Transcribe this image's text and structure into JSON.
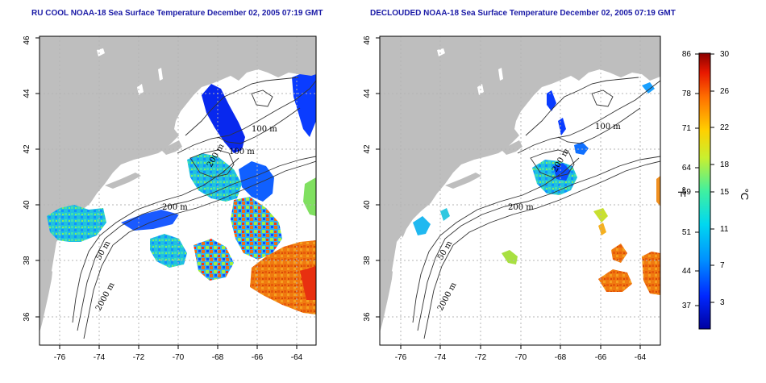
{
  "left_panel": {
    "title": "RU COOL NOAA-18 Sea Surface Temperature December 02, 2005 07:19 GMT"
  },
  "right_panel": {
    "title": "DECLOUDED NOAA-18 Sea Surface Temperature December 02, 2005 07:19 GMT"
  },
  "axes": {
    "lon_ticks": [
      "-76",
      "-74",
      "-72",
      "-70",
      "-68",
      "-66",
      "-64"
    ],
    "lat_ticks": [
      "36",
      "38",
      "40",
      "42",
      "44",
      "46"
    ]
  },
  "contour_labels": {
    "left": [
      "100 m",
      "100 m",
      "200 m",
      "200 m",
      "50 m",
      "2000 m"
    ],
    "right": [
      "100 m",
      "200 m",
      "200 m",
      "50 m",
      "2000 m"
    ]
  },
  "colorbar": {
    "f_ticks": [
      "86",
      "78",
      "71",
      "64",
      "59",
      "51",
      "44",
      "37"
    ],
    "c_ticks": [
      "30",
      "26",
      "22",
      "18",
      "15",
      "11",
      "7",
      "3"
    ],
    "f_unit": "°F",
    "c_unit": "°C"
  },
  "colors": {
    "land": "#bebebe",
    "title": "#1a1aa6",
    "grid": "#b4b4b4"
  }
}
